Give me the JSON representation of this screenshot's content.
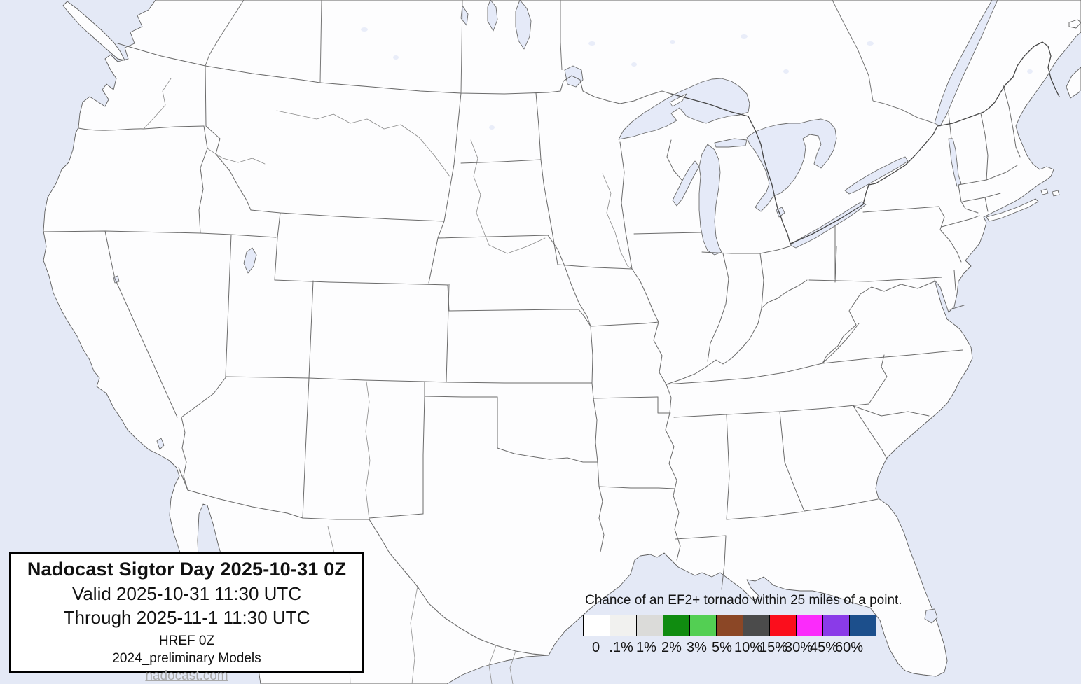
{
  "map": {
    "description": "Continental United States tornado outlook map, no probability contours shaded (all 0%)",
    "water_color": "#e4e9f6",
    "lake_color": "#e5eaf8",
    "land_color": "#fdfdfe",
    "state_border_color": "#6b6b6b",
    "international_border_color": "#454545"
  },
  "info_box": {
    "title": "Nadocast Sigtor Day 2025-10-31 0Z",
    "valid": "Valid 2025-10-31 11:30 UTC",
    "through": "Through 2025-11-1 11:30 UTC",
    "model": "HREF 0Z",
    "models_note": "2024_preliminary Models",
    "website": "nadocast.com"
  },
  "legend": {
    "title": "Chance of an EF2+ tornado within 25 miles of a point.",
    "items": [
      {
        "label": "0",
        "color": "#ffffff"
      },
      {
        "label": ".1%",
        "color": "#f1f1ef"
      },
      {
        "label": "1%",
        "color": "#dbdbd9"
      },
      {
        "label": "2%",
        "color": "#108c10"
      },
      {
        "label": "3%",
        "color": "#53cf53"
      },
      {
        "label": "5%",
        "color": "#8b4726"
      },
      {
        "label": "10%",
        "color": "#4b4b4b"
      },
      {
        "label": "15%",
        "color": "#fb0e1c"
      },
      {
        "label": "30%",
        "color": "#fb2bfb"
      },
      {
        "label": "45%",
        "color": "#8a3be8"
      },
      {
        "label": "60%",
        "color": "#1c4f8c"
      }
    ]
  }
}
